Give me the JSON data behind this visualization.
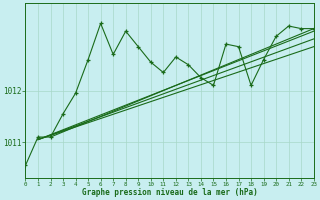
{
  "bg_color": "#c8eef0",
  "line_color": "#1a6b1a",
  "grid_color": "#a8d8c8",
  "xlabel": "Graphe pression niveau de la mer (hPa)",
  "ytick_labels": [
    "1011",
    "1012"
  ],
  "ytick_vals": [
    1011,
    1012
  ],
  "xtick_vals": [
    0,
    1,
    2,
    3,
    4,
    5,
    6,
    7,
    8,
    9,
    10,
    11,
    12,
    13,
    14,
    15,
    16,
    17,
    18,
    19,
    20,
    21,
    22,
    23
  ],
  "ylim": [
    1010.3,
    1013.7
  ],
  "xlim": [
    0,
    23
  ],
  "jagged": [
    1010.55,
    1011.1,
    1011.1,
    1011.55,
    1011.95,
    1012.6,
    1013.3,
    1012.7,
    1013.15,
    1012.85,
    1012.55,
    1012.35,
    1012.65,
    1012.5,
    1012.25,
    1012.1,
    1012.9,
    1012.85,
    1012.1,
    1012.6,
    1013.05,
    1013.25,
    1013.2,
    1013.2
  ],
  "straight_lines": [
    {
      "x0": 1,
      "y0": 1011.05,
      "x1": 23,
      "y1": 1013.15
    },
    {
      "x0": 1,
      "y0": 1011.05,
      "x1": 23,
      "y1": 1013.0
    },
    {
      "x0": 1,
      "y0": 1011.05,
      "x1": 23,
      "y1": 1012.85
    },
    {
      "x0": 2,
      "y0": 1011.1,
      "x1": 23,
      "y1": 1013.2
    }
  ]
}
